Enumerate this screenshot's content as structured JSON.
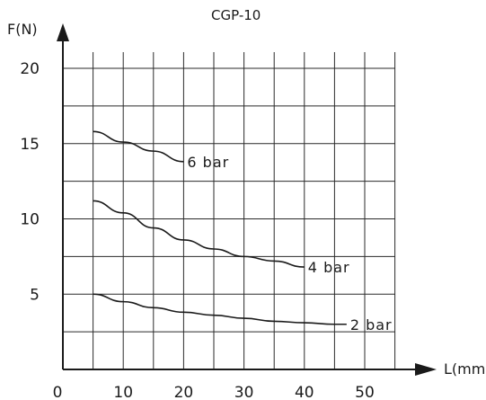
{
  "chart_data": {
    "type": "line",
    "title": "CGP-10",
    "xlabel": "L(mm)",
    "ylabel": "F(N)",
    "xlim": [
      0,
      55
    ],
    "ylim": [
      0,
      20
    ],
    "x_ticks": [
      0,
      10,
      20,
      30,
      40,
      50
    ],
    "y_ticks": [
      5,
      10,
      15,
      20
    ],
    "grid": true,
    "series": [
      {
        "name": "6 bar",
        "x": [
          5,
          10,
          15,
          20
        ],
        "y": [
          15.8,
          15.1,
          14.5,
          13.8
        ]
      },
      {
        "name": "4 bar",
        "x": [
          5,
          10,
          15,
          20,
          25,
          30,
          35,
          40
        ],
        "y": [
          11.2,
          10.4,
          9.4,
          8.6,
          8.0,
          7.5,
          7.2,
          6.8
        ]
      },
      {
        "name": "2 bar",
        "x": [
          5,
          10,
          15,
          20,
          25,
          30,
          35,
          40,
          45,
          47
        ],
        "y": [
          5.0,
          4.5,
          4.1,
          3.8,
          3.6,
          3.4,
          3.2,
          3.1,
          3.0,
          3.0
        ]
      }
    ]
  },
  "colors": {
    "ink": "#1a1a1a",
    "grid": "#2a2a2a",
    "background": "#ffffff"
  }
}
